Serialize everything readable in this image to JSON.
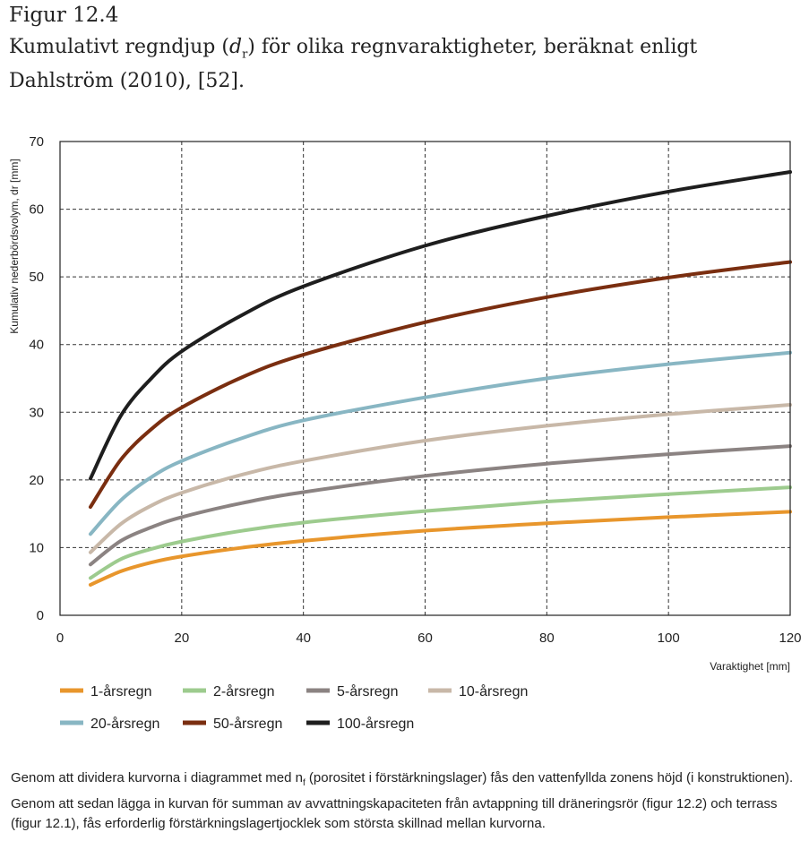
{
  "figure": {
    "label": "Figur 12.4",
    "title_start": "Kumulativt regndjup (",
    "title_var": "d",
    "title_sub": "r",
    "title_end": ") för olika regnvaraktigheter, beräknat enligt Dahlström (2010), [52]."
  },
  "caption": {
    "part1": "Genom att dividera kurvorna i diagrammet med n",
    "sub": "f",
    "part2": " (porositet i förstärkningslager) fås den vattenfyllda zonens höjd (i konstruktionen). Genom att sedan lägga in kurvan för summan av avvattningskapaciteten från avtappning till dräneringsrör (figur 12.2) och terrass (figur 12.1), fås erforderlig förstärkningslagertjocklek som största skillnad mellan kurvorna."
  },
  "chart_data": {
    "type": "line",
    "xlabel": "Varaktighet [mm]",
    "ylabel": "Kumulativ nederbördsvolym, dr [mm]",
    "xlim": [
      0,
      120
    ],
    "ylim": [
      0,
      70
    ],
    "xticks": [
      0,
      20,
      40,
      60,
      80,
      100,
      120
    ],
    "yticks": [
      0,
      10,
      20,
      30,
      40,
      50,
      60,
      70
    ],
    "grid": true,
    "legend_position": "bottom",
    "x": [
      5,
      10,
      15,
      20,
      30,
      40,
      60,
      80,
      100,
      120
    ],
    "series": [
      {
        "name": "1-årsregn",
        "color": "#e8962c",
        "values": [
          4.5,
          6.5,
          7.8,
          8.7,
          10.0,
          11.0,
          12.5,
          13.6,
          14.5,
          15.3
        ]
      },
      {
        "name": "2-årsregn",
        "color": "#9dcb8e",
        "values": [
          5.5,
          8.3,
          9.8,
          10.9,
          12.5,
          13.7,
          15.4,
          16.8,
          17.9,
          18.9
        ]
      },
      {
        "name": "5-årsregn",
        "color": "#8b8382",
        "values": [
          7.5,
          11.0,
          13.0,
          14.5,
          16.6,
          18.2,
          20.6,
          22.4,
          23.8,
          25.0
        ]
      },
      {
        "name": "10-årsregn",
        "color": "#c8b8a8",
        "values": [
          9.3,
          13.5,
          16.2,
          18.1,
          20.8,
          22.8,
          25.8,
          28.0,
          29.7,
          31.1
        ]
      },
      {
        "name": "20-årsregn",
        "color": "#88b6c3",
        "values": [
          12.0,
          17.0,
          20.4,
          22.8,
          26.2,
          28.8,
          32.2,
          35.0,
          37.1,
          38.8
        ]
      },
      {
        "name": "50-årsregn",
        "color": "#7a2e10",
        "values": [
          16.0,
          23.0,
          27.5,
          30.7,
          35.2,
          38.5,
          43.3,
          47.0,
          49.9,
          52.2
        ]
      },
      {
        "name": "100-årsregn",
        "color": "#1e1e1e",
        "values": [
          20.2,
          29.5,
          35.0,
          39.0,
          44.4,
          48.6,
          54.6,
          59.0,
          62.6,
          65.5
        ]
      }
    ]
  }
}
